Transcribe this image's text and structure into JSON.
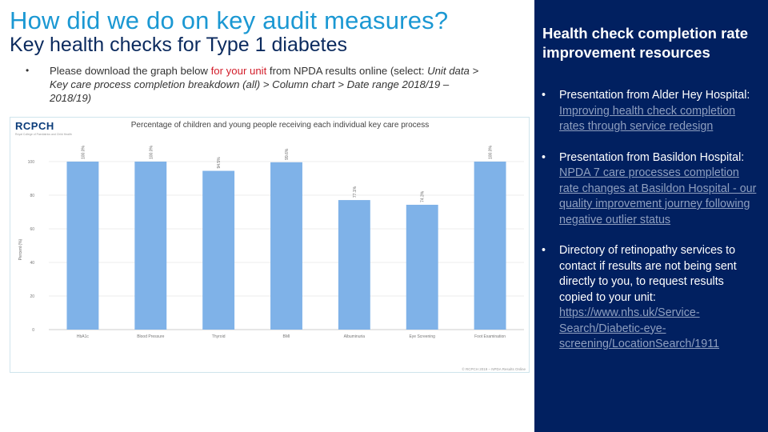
{
  "slide": {
    "title": "How did we do on key audit measures?",
    "subtitle": "Key health checks for Type 1 diabetes",
    "intro": {
      "part1": "Please download the graph below ",
      "part2_red": "for your unit",
      "part3": " from NPDA results online (select: ",
      "part4_italic": "Unit data > Key care process completion breakdown (all) > Column chart > Date range 2018/19 – 2018/19)"
    }
  },
  "chart_logo": {
    "text": "RCPCH",
    "subtext": "Royal College of Paediatrics and Child Health"
  },
  "chart_data": {
    "type": "bar",
    "title": "Percentage of children and young people receiving each individual key care process",
    "ylabel": "Percent (%)",
    "xlabel": "",
    "ylim": [
      0,
      100
    ],
    "yticks": [
      "0",
      "20",
      "40",
      "60",
      "80",
      "100"
    ],
    "categories": [
      "HbA1c",
      "Blood Pressure",
      "Thyroid",
      "BMI",
      "Albuminuria",
      "Eye Screening",
      "Foot Examination"
    ],
    "values": [
      100,
      100,
      94.5,
      99.6,
      77.1,
      74.3,
      100
    ],
    "value_labels": [
      "100.0%",
      "100.0%",
      "94.5%",
      "99.6%",
      "77.1%",
      "74.3%",
      "100.0%"
    ],
    "footnote": "© RCPCH 2019 – NPDA Results Online",
    "bar_color": "#7fb2e8"
  },
  "panel": {
    "title": "Health check completion rate improvement resources",
    "items": [
      {
        "text": "Presentation from Alder Hey Hospital: ",
        "link": "Improving health check completion rates through service redesign",
        "tail": ""
      },
      {
        "text": "Presentation from Basildon Hospital: ",
        "link": "NPDA 7 care processes completion rate changes at Basildon Hospital - our quality improvement journey following negative outlier status",
        "tail": ""
      },
      {
        "text": "Directory of retinopathy services to contact if results are not being sent directly to you, to request results copied to your unit: ",
        "link": "https://www.nhs.uk/Service-Search/Diabetic-eye-screening/LocationSearch/1911",
        "tail": ""
      }
    ]
  }
}
